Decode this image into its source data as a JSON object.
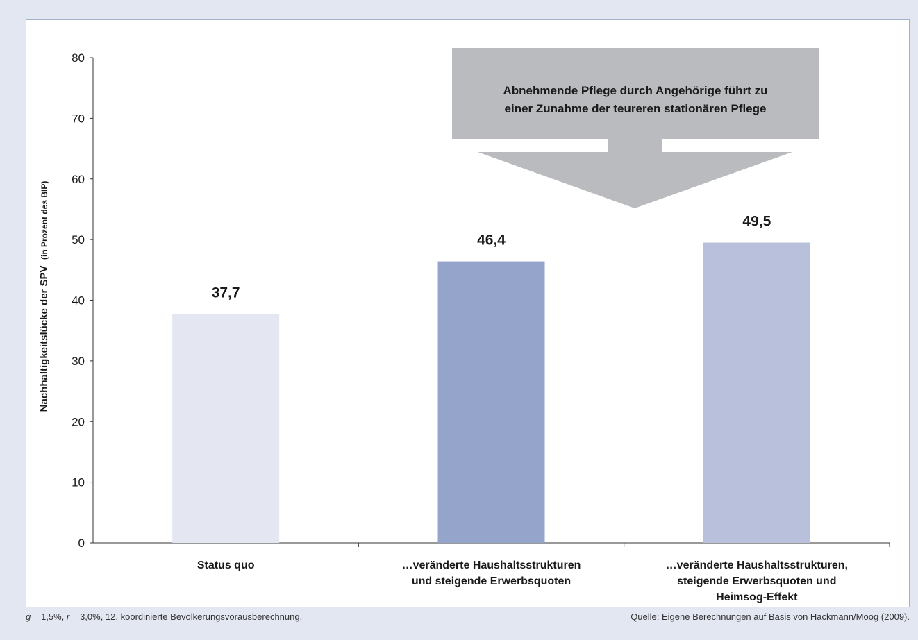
{
  "chart_data": {
    "type": "bar",
    "ylabel": "Nachhaltigkeitslücke der SPV",
    "ylabel_suffix": "(in Prozent des BIP)",
    "ylim": [
      0,
      80
    ],
    "yticks": [
      "0",
      "10",
      "20",
      "30",
      "40",
      "50",
      "60",
      "70",
      "80"
    ],
    "grid": false,
    "categories": [
      [
        "Status quo"
      ],
      [
        "…veränderte Haushaltsstrukturen",
        "und steigende Erwerbsquoten"
      ],
      [
        "…veränderte Haushaltsstrukturen,",
        "steigende Erwerbsquoten und",
        "Heimsog-Effekt"
      ]
    ],
    "values": [
      37.7,
      46.4,
      49.5
    ],
    "value_labels": [
      "37,7",
      "46,4",
      "49,5"
    ],
    "bar_colors": [
      "#e4e6f2",
      "#94a4cb",
      "#b8c0dc"
    ],
    "annotation": {
      "lines": [
        "Abnehmende Pflege durch Angehörige führt zu",
        "einer Zunahme der teureren stationären Pflege"
      ],
      "color": "#b9bbbe"
    }
  },
  "footnote_left": {
    "g": "g",
    "g_value": " = 1,5%, ",
    "r": "r",
    "r_value": " = 3,0%, 12. koordinierte Bevölkerungsvorausberechnung."
  },
  "footnote_right": "Quelle: Eigene Berechnungen auf Basis von Hackmann/Moog (2009)."
}
